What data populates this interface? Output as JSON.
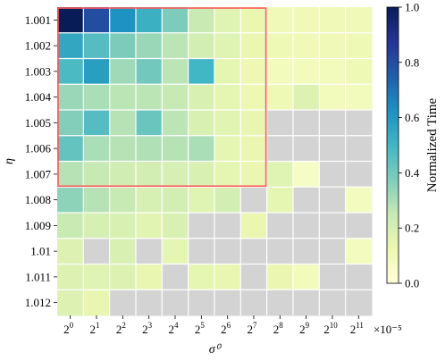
{
  "chart_data": {
    "type": "heatmap",
    "xlabel": "σ⁰",
    "ylabel": "η",
    "x_multiplier": "×10⁻⁵",
    "x_ticks": [
      {
        "base": "2",
        "exp": "0"
      },
      {
        "base": "2",
        "exp": "1"
      },
      {
        "base": "2",
        "exp": "2"
      },
      {
        "base": "2",
        "exp": "3"
      },
      {
        "base": "2",
        "exp": "4"
      },
      {
        "base": "2",
        "exp": "5"
      },
      {
        "base": "2",
        "exp": "6"
      },
      {
        "base": "2",
        "exp": "7"
      },
      {
        "base": "2",
        "exp": "8"
      },
      {
        "base": "2",
        "exp": "9"
      },
      {
        "base": "2",
        "exp": "10"
      },
      {
        "base": "2",
        "exp": "11"
      }
    ],
    "y_ticks": [
      "1.001",
      "1.002",
      "1.003",
      "1.004",
      "1.005",
      "1.006",
      "1.007",
      "1.008",
      "1.009",
      "1.01",
      "1.011",
      "1.012"
    ],
    "colorbar": {
      "label": "Normalized Time",
      "ticks": [
        "0.0",
        "0.2",
        "0.4",
        "0.6",
        "0.8",
        "1.0"
      ],
      "range": [
        0,
        1
      ]
    },
    "values": [
      [
        1.0,
        0.8,
        0.62,
        0.52,
        0.38,
        0.24,
        0.17,
        0.13,
        0.1,
        0.1,
        0.1,
        0.1
      ],
      [
        0.55,
        0.46,
        0.38,
        0.33,
        0.27,
        0.21,
        0.17,
        0.13,
        0.11,
        0.1,
        0.1,
        0.11
      ],
      [
        0.48,
        0.58,
        0.32,
        0.4,
        0.27,
        0.5,
        0.15,
        0.12,
        0.09,
        0.09,
        0.09,
        0.11
      ],
      [
        0.33,
        0.3,
        0.27,
        0.27,
        0.25,
        0.19,
        0.15,
        0.12,
        0.11,
        0.18,
        0.09,
        0.09
      ],
      [
        0.37,
        0.46,
        0.28,
        0.42,
        0.27,
        0.19,
        0.16,
        0.14,
        null,
        null,
        null,
        null
      ],
      [
        0.43,
        0.3,
        0.28,
        0.29,
        0.28,
        0.3,
        0.15,
        0.13,
        null,
        null,
        null,
        null
      ],
      [
        0.28,
        0.25,
        0.22,
        0.21,
        0.2,
        0.19,
        0.15,
        0.13,
        0.17,
        0.06,
        null,
        null
      ],
      [
        0.35,
        0.28,
        0.25,
        0.2,
        0.21,
        0.17,
        0.21,
        null,
        0.15,
        null,
        null,
        0.08
      ],
      [
        0.24,
        0.2,
        0.19,
        0.16,
        0.19,
        null,
        null,
        0.13,
        null,
        null,
        null,
        null
      ],
      [
        0.18,
        null,
        0.19,
        null,
        0.15,
        null,
        null,
        null,
        null,
        null,
        null,
        0.08
      ],
      [
        0.18,
        0.17,
        0.18,
        0.14,
        null,
        0.15,
        0.14,
        null,
        0.13,
        0.09,
        null,
        null
      ],
      [
        0.18,
        0.14,
        null,
        null,
        null,
        null,
        null,
        null,
        null,
        null,
        null,
        null
      ]
    ],
    "missing_color": "#d3d3d3",
    "highlight_color": "#ff5a5a",
    "highlight_region": {
      "x_from": "2^0",
      "x_to": "2^7",
      "y_from": "1.001",
      "y_to": "1.007"
    },
    "colormap": "YlGnBu"
  }
}
